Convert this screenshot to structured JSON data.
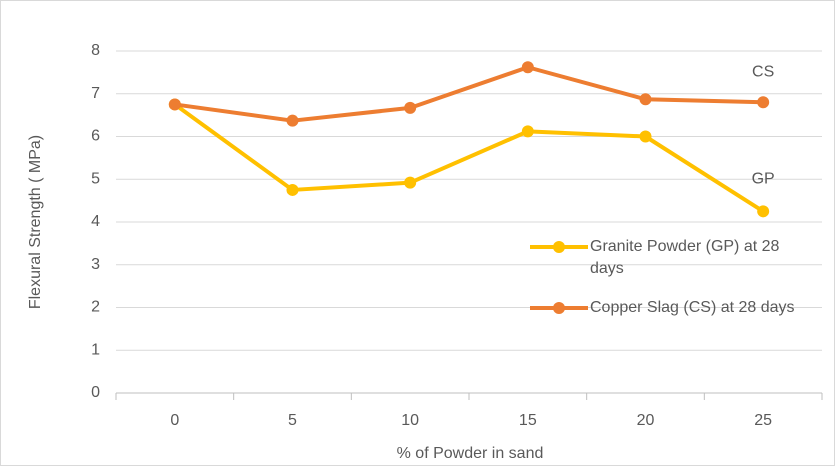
{
  "chart_data": {
    "type": "line",
    "x_label": "% of Powder in sand",
    "y_label": "Flexural Strength ( MPa)",
    "categories": [
      "0",
      "5",
      "10",
      "15",
      "20",
      "25"
    ],
    "series": [
      {
        "name": "Granite Powder (GP) at 28 days",
        "color": "#FFC000",
        "values": [
          6.75,
          4.75,
          4.92,
          6.12,
          6.0,
          4.25
        ]
      },
      {
        "name": "Copper Slag (CS) at 28 days",
        "color": "#ED7D31",
        "values": [
          6.75,
          6.37,
          6.67,
          7.62,
          6.87,
          6.8
        ]
      }
    ],
    "annotations": [
      "GP",
      "CS"
    ],
    "ylim": [
      0,
      8
    ],
    "yticks": [
      0,
      1,
      2,
      3,
      4,
      5,
      6,
      7,
      8
    ],
    "grid": true,
    "legend": "right"
  }
}
